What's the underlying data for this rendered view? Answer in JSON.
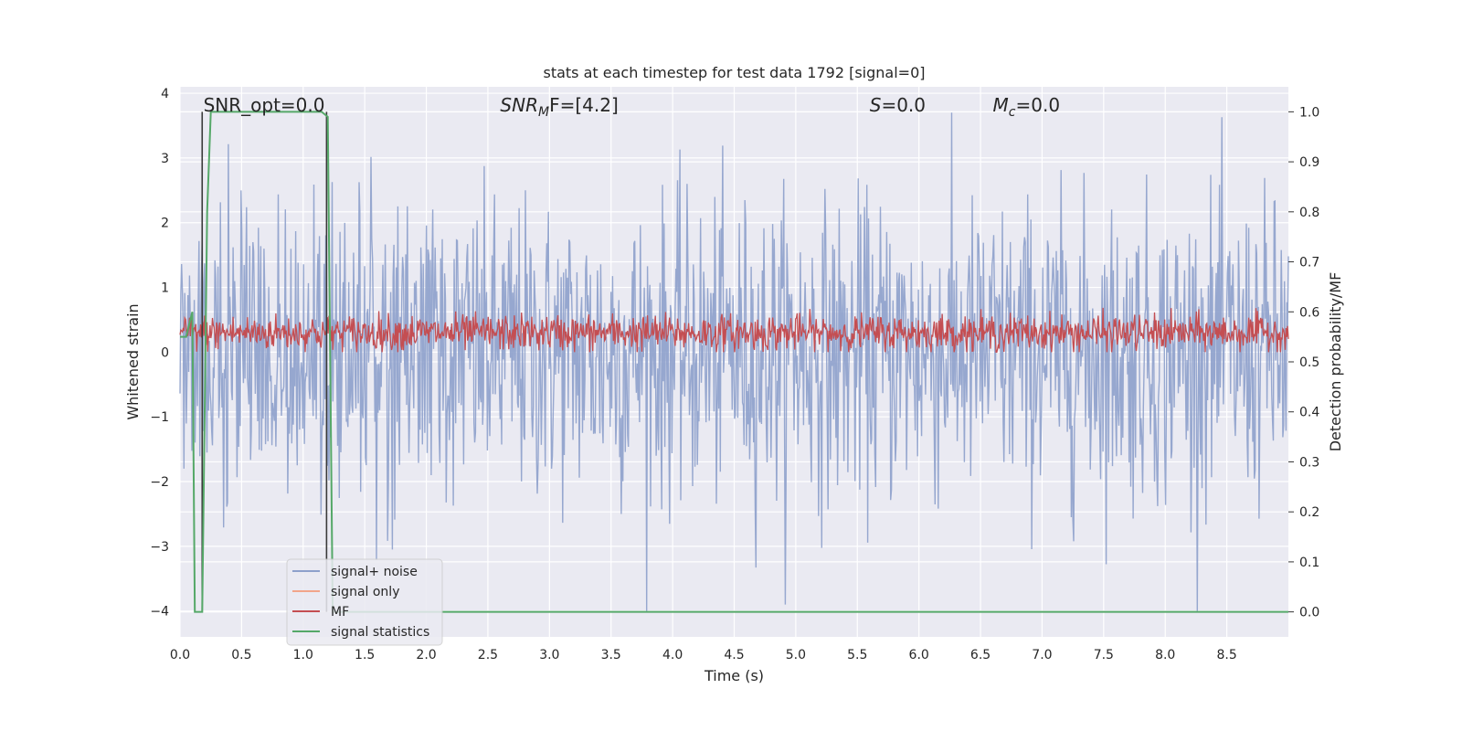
{
  "chart_data": {
    "type": "line",
    "title": "stats at each timestep for test data 1792 [signal=0]",
    "xlabel": "Time (s)",
    "ylabel": "Whitened strain",
    "y2label": "Detection probability/MF",
    "xlim": [
      0.0,
      9.0
    ],
    "ylim": [
      -4.4,
      4.1
    ],
    "y2lim": [
      -0.05,
      1.05
    ],
    "xticks": [
      "0.0",
      "0.5",
      "1.0",
      "1.5",
      "2.0",
      "2.5",
      "3.0",
      "3.5",
      "4.0",
      "4.5",
      "5.0",
      "5.5",
      "6.0",
      "6.5",
      "7.0",
      "7.5",
      "8.0",
      "8.5"
    ],
    "yticks": [
      "4",
      "3",
      "2",
      "1",
      "0",
      "−1",
      "−2",
      "−3",
      "−4"
    ],
    "y2ticks": [
      "1.0",
      "0.9",
      "0.8",
      "0.7",
      "0.6",
      "0.5",
      "0.4",
      "0.3",
      "0.2",
      "0.1",
      "0.0"
    ],
    "grid": true,
    "legend_position": "lower-left",
    "annotations": [
      {
        "text": "SNR_opt=0.0"
      },
      {
        "text": "SNR",
        "italic_sub": "M",
        "rest": "F=[4.2]"
      },
      {
        "text": "S",
        "rest": "=0.0"
      },
      {
        "text": "M",
        "italic_sub": "c",
        "rest": "=0.0"
      }
    ],
    "series": [
      {
        "name": "signal+ noise",
        "axis": "left",
        "color": "#8da0cb",
        "description_values": {
          "mean": 0.0,
          "envelope": [
            -1.8,
            1.8
          ],
          "peak_range": [
            -4.0,
            3.7
          ]
        }
      },
      {
        "name": "signal only",
        "axis": "left",
        "color": "#f2a58a",
        "values": []
      },
      {
        "name": "MF",
        "axis": "left",
        "color": "#c44e52",
        "description_values": {
          "mean": 0.3,
          "range": [
            0.0,
            1.0
          ]
        }
      },
      {
        "name": "signal statistics",
        "axis": "right",
        "color": "#55a868",
        "x": [
          0.0,
          0.05,
          0.1,
          0.12,
          0.18,
          0.22,
          0.25,
          1.15,
          1.2,
          1.24,
          1.3,
          9.0
        ],
        "values": [
          0.55,
          0.55,
          0.6,
          0.0,
          0.0,
          0.8,
          1.0,
          1.0,
          0.99,
          0.0,
          0.0,
          0.0
        ]
      }
    ],
    "vertical_lines": [
      {
        "x": 0.18,
        "color": "#3a3a3a"
      },
      {
        "x": 1.19,
        "color": "#3a3a3a"
      }
    ],
    "colors": {
      "axes_bg": "#eaeaf2",
      "grid": "#ffffff"
    }
  }
}
